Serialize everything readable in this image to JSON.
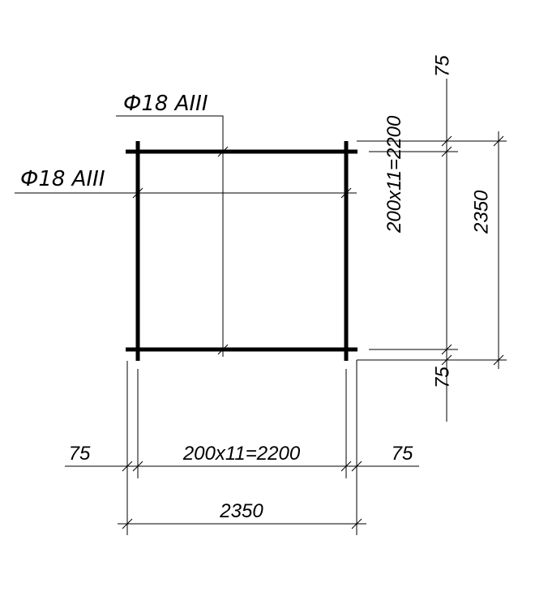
{
  "rebar_labels": [
    "Ф18 AIII",
    "Ф18 AIII"
  ],
  "vertical_dimensions": [
    "75",
    "200x11=2200",
    "2350",
    "75"
  ],
  "horizontal_dimensions": [
    "75",
    "200x11=2200",
    "75",
    "2350"
  ]
}
